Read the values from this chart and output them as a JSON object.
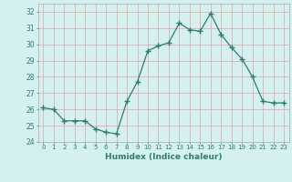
{
  "x": [
    0,
    1,
    2,
    3,
    4,
    5,
    6,
    7,
    8,
    9,
    10,
    11,
    12,
    13,
    14,
    15,
    16,
    17,
    18,
    19,
    20,
    21,
    22,
    23
  ],
  "y": [
    26.1,
    26.0,
    25.3,
    25.3,
    25.3,
    24.8,
    24.6,
    24.5,
    26.5,
    27.7,
    29.6,
    29.9,
    30.1,
    31.3,
    30.9,
    30.8,
    31.9,
    30.6,
    29.8,
    29.1,
    28.0,
    26.5,
    26.4,
    26.4
  ],
  "line_color": "#2e7d6e",
  "marker": "+",
  "marker_size": 4,
  "bg_color": "#d4f0f0",
  "grid_color": "#e8a0a0",
  "xlabel": "Humidex (Indice chaleur)",
  "ylim": [
    24,
    32.5
  ],
  "xlim": [
    -0.5,
    23.5
  ],
  "yticks": [
    24,
    25,
    26,
    27,
    28,
    29,
    30,
    31,
    32
  ],
  "xtick_labels": [
    "0",
    "1",
    "2",
    "3",
    "4",
    "5",
    "6",
    "7",
    "8",
    "9",
    "10",
    "11",
    "12",
    "13",
    "14",
    "15",
    "16",
    "17",
    "18",
    "19",
    "20",
    "21",
    "22",
    "23"
  ],
  "figsize": [
    3.2,
    2.0
  ],
  "dpi": 100
}
